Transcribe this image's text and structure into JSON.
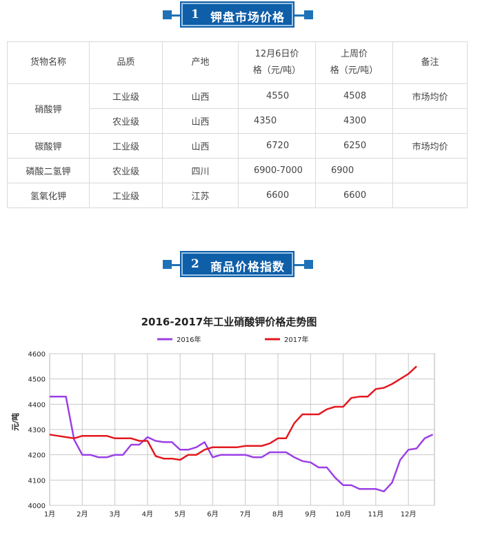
{
  "section1": {
    "num": "1",
    "title": "钾盘市场价格"
  },
  "section2": {
    "num": "2",
    "title": "商品价格指数"
  },
  "table": {
    "headers": [
      "货物名称",
      "品质",
      "产地",
      "12月6日价格（元/吨）",
      "上周价格（元/吨）",
      "备注"
    ],
    "header_lines": [
      [
        "货物名称"
      ],
      [
        "品质"
      ],
      [
        "产地"
      ],
      [
        "12月6日价",
        "格（元/吨）"
      ],
      [
        "上周价",
        "格（元/吨）"
      ],
      [
        "备注"
      ]
    ],
    "rows": [
      {
        "name": "硝酸钾",
        "quality": "工业级",
        "origin": "山西",
        "price": "4550",
        "last_week": "4508",
        "note": "市场均价"
      },
      {
        "name": "",
        "quality": "农业级",
        "origin": "山西",
        "price": "4350",
        "last_week": "4300",
        "note": ""
      },
      {
        "name": "碳酸钾",
        "quality": "工业级",
        "origin": "山西",
        "price": "6720",
        "last_week": "6250",
        "note": "市场均价"
      },
      {
        "name": "磷酸二氢钾",
        "quality": "农业级",
        "origin": "四川",
        "price": "6900-7000",
        "last_week": "6900",
        "note": ""
      },
      {
        "name": "氢氧化钾",
        "quality": "工业级",
        "origin": "江苏",
        "price": "6600",
        "last_week": "6600",
        "note": ""
      }
    ]
  },
  "chart_data": {
    "type": "line",
    "title": "2016-2017年工业硝酸钾价格走势图",
    "ylabel": "元/吨",
    "xlabel": "",
    "ylim": [
      4000,
      4600
    ],
    "yticks": [
      4000,
      4100,
      4200,
      4300,
      4400,
      4500,
      4600
    ],
    "xticks": [
      "1月",
      "2月",
      "3月",
      "4月",
      "5月",
      "6月",
      "7月",
      "8月",
      "9月",
      "10月",
      "11月",
      "12月"
    ],
    "x_range": [
      1,
      12.8
    ],
    "grid": true,
    "legend_position": "top",
    "series": [
      {
        "name": "2016年",
        "color": "#9b3fe6",
        "x": [
          1,
          1.25,
          1.5,
          1.75,
          2,
          2.25,
          2.5,
          2.75,
          3,
          3.25,
          3.5,
          3.75,
          4,
          4.25,
          4.5,
          4.75,
          5,
          5.25,
          5.5,
          5.75,
          6,
          6.25,
          6.5,
          6.75,
          7,
          7.25,
          7.5,
          7.75,
          8,
          8.25,
          8.5,
          8.75,
          9,
          9.25,
          9.5,
          9.75,
          10,
          10.25,
          10.5,
          10.75,
          11,
          11.25,
          11.5,
          11.75,
          12,
          12.25,
          12.5,
          12.75
        ],
        "values": [
          4430,
          4430,
          4430,
          4260,
          4200,
          4200,
          4190,
          4190,
          4200,
          4200,
          4240,
          4240,
          4270,
          4255,
          4250,
          4250,
          4220,
          4220,
          4230,
          4250,
          4190,
          4200,
          4200,
          4200,
          4200,
          4190,
          4190,
          4210,
          4210,
          4210,
          4190,
          4175,
          4170,
          4150,
          4150,
          4110,
          4080,
          4080,
          4065,
          4065,
          4065,
          4055,
          4090,
          4180,
          4220,
          4225,
          4265,
          4280
        ]
      },
      {
        "name": "2017年",
        "color": "#e3171f",
        "x": [
          1,
          1.25,
          1.5,
          1.75,
          2,
          2.25,
          2.5,
          2.75,
          3,
          3.25,
          3.5,
          3.75,
          4,
          4.25,
          4.5,
          4.75,
          5,
          5.25,
          5.5,
          5.75,
          6,
          6.25,
          6.5,
          6.75,
          7,
          7.25,
          7.5,
          7.75,
          8,
          8.25,
          8.5,
          8.75,
          9,
          9.25,
          9.5,
          9.75,
          10,
          10.25,
          10.5,
          10.75,
          11,
          11.25,
          11.5,
          11.75,
          12,
          12.25
        ],
        "values": [
          4280,
          4275,
          4270,
          4265,
          4275,
          4275,
          4275,
          4275,
          4265,
          4265,
          4265,
          4255,
          4255,
          4195,
          4185,
          4185,
          4180,
          4200,
          4200,
          4220,
          4230,
          4230,
          4230,
          4230,
          4235,
          4235,
          4235,
          4245,
          4265,
          4265,
          4325,
          4360,
          4360,
          4360,
          4380,
          4390,
          4390,
          4425,
          4430,
          4430,
          4460,
          4465,
          4480,
          4500,
          4520,
          4550
        ]
      }
    ]
  }
}
